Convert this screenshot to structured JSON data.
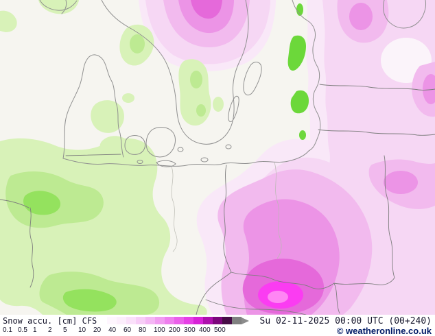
{
  "footer": {
    "parameter_label": "Snow accu. [cm]",
    "model_label": "CFS",
    "datetime_label": "Su 02-11-2025 00:00 UTC (00+240)",
    "copyright_label": "© weatheronline.co.uk"
  },
  "legend": {
    "tick_labels": [
      "0.1",
      "0.5",
      "1",
      "2",
      "5",
      "10",
      "20",
      "40",
      "60",
      "80",
      "100",
      "200",
      "300",
      "400",
      "500"
    ],
    "colors": [
      "#ffffff",
      "#fef6fe",
      "#fceefc",
      "#fae0fa",
      "#f7cdf7",
      "#f4b6f4",
      "#f19cf1",
      "#ee7fee",
      "#ea60ea",
      "#e640e6",
      "#d722d7",
      "#ad10ad",
      "#7c067c",
      "#460c46",
      "#808080"
    ],
    "arrow_color": "#8c8c8c"
  },
  "palette": {
    "background": "#f6f5f0",
    "green_light": "#d8f2b8",
    "green_mid": "#bdea92",
    "green_bright": "#94e25e",
    "green_vivid": "#6cd83a",
    "pink_pale": "#f9e8f8",
    "pink_light": "#f6d7f4",
    "pink_mid": "#f2baee",
    "pink_strong": "#ec94e6",
    "pink_deep": "#e569da",
    "magenta_bright": "#fb3cf2",
    "pink_hot": "#ff86f4",
    "white_spot": "#fbf4fa",
    "coast": "#8f8f8f",
    "border": "#7d7d7d",
    "river": "#b9b9b1",
    "text": "#14142a",
    "copyright_color": "#001a66"
  }
}
